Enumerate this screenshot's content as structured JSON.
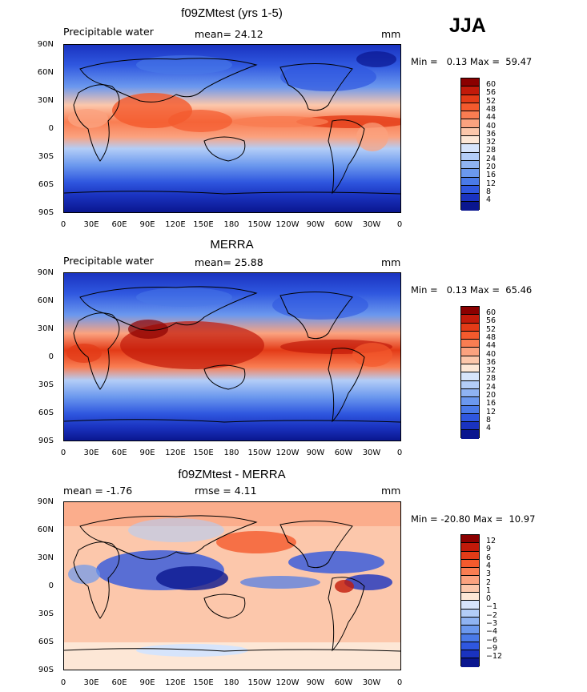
{
  "season": "JJA",
  "y_ticks": [
    "90N",
    "60N",
    "30N",
    "0",
    "30S",
    "60S",
    "90S"
  ],
  "x_ticks": [
    "0",
    "30E",
    "60E",
    "90E",
    "120E",
    "150E",
    "180",
    "150W",
    "120W",
    "90W",
    "60W",
    "30W",
    "0"
  ],
  "panels": [
    {
      "title": "f09ZMtest (yrs 1-5)",
      "left_label": "Precipitable water",
      "center_label": "mean=  24.12",
      "units": "mm",
      "minmax": "Min =   0.13 Max =  59.47"
    },
    {
      "title": "MERRA",
      "left_label": "Precipitable water",
      "center_label": "mean=  25.88",
      "units": "mm",
      "minmax": "Min =   0.13 Max =  65.46"
    },
    {
      "title": "f09ZMtest - MERRA",
      "left_label": "mean =   -1.76",
      "center_label": "rmse =    4.11",
      "units": "mm",
      "minmax": "Min = -20.80 Max =  10.97"
    }
  ],
  "colorbar_abs": {
    "levels": [
      "60",
      "56",
      "52",
      "48",
      "44",
      "40",
      "36",
      "32",
      "28",
      "24",
      "20",
      "16",
      "12",
      "8",
      "4"
    ],
    "colors": [
      "#8b0000",
      "#c21a0a",
      "#e33b17",
      "#f45a2d",
      "#f97d52",
      "#fba27f",
      "#fcc7ab",
      "#fde7d6",
      "#d6e4fb",
      "#b3cdf7",
      "#8fb3f2",
      "#6b98ee",
      "#4a7ae8",
      "#2f57df",
      "#1a33c0",
      "#0a168f"
    ]
  },
  "colorbar_diff": {
    "levels": [
      "12",
      "9",
      "6",
      "4",
      "3",
      "2",
      "1",
      "0",
      "−1",
      "−2",
      "−3",
      "−4",
      "−6",
      "−9",
      "−12"
    ],
    "colors": [
      "#8b0000",
      "#c21a0a",
      "#e33b17",
      "#f45a2d",
      "#f97d52",
      "#fba27f",
      "#fcc7ab",
      "#fde7d6",
      "#d6e4fb",
      "#b3cdf7",
      "#8fb3f2",
      "#6b98ee",
      "#4a7ae8",
      "#2f57df",
      "#1a33c0",
      "#0a168f"
    ]
  }
}
